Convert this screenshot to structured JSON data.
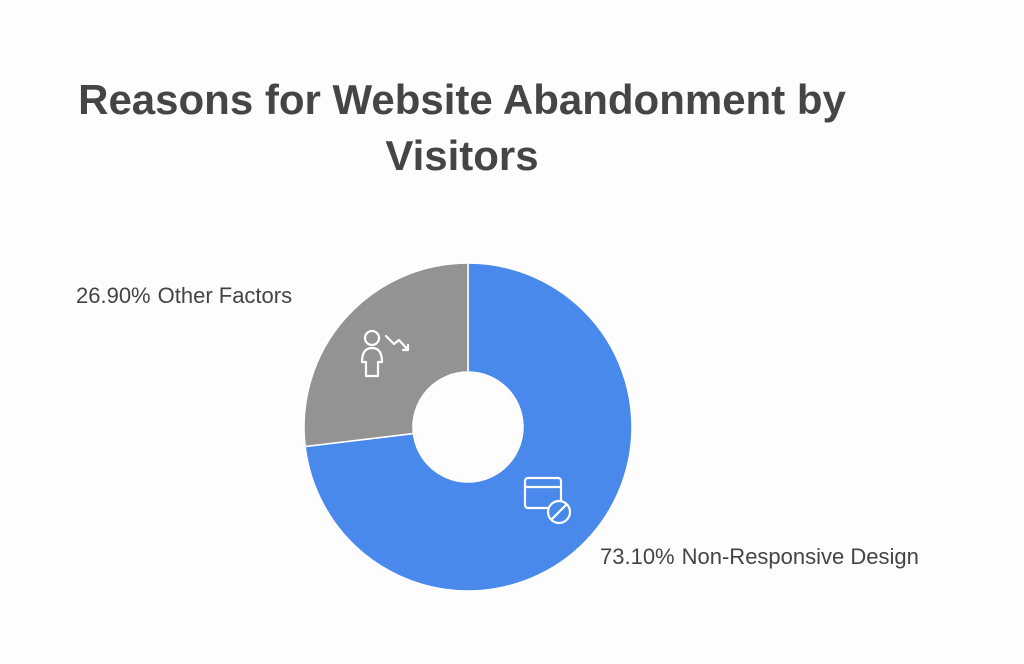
{
  "chart_data": {
    "type": "pie",
    "donut": true,
    "title": "Reasons for Website Abandonment by Visitors",
    "categories": [
      "Non-Responsive Design",
      "Other Factors"
    ],
    "values": [
      73.1,
      26.9
    ],
    "value_labels": [
      "73.10%",
      "26.90%"
    ],
    "colors": [
      "#4a89ec",
      "#949293"
    ]
  }
}
